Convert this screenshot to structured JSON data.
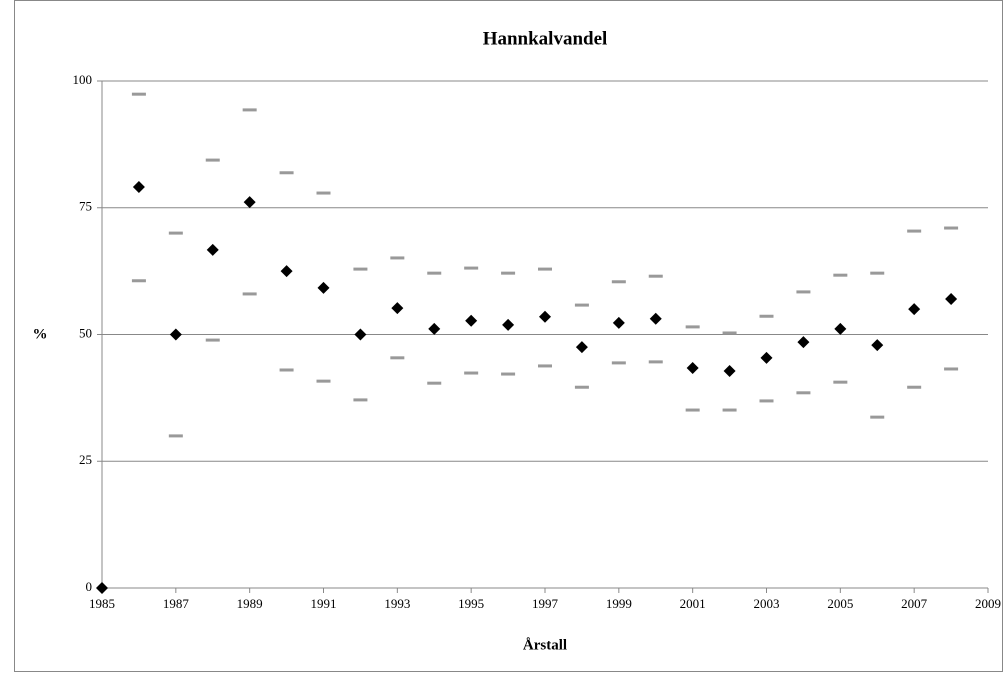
{
  "chart_data": {
    "type": "scatter",
    "title": "Hannkalvandel",
    "xlabel": "Årstall",
    "ylabel": "%",
    "x": [
      1985,
      1986,
      1987,
      1988,
      1989,
      1990,
      1991,
      1992,
      1993,
      1994,
      1995,
      1996,
      1997,
      1998,
      1999,
      2000,
      2001,
      2002,
      2003,
      2004,
      2005,
      2006,
      2007,
      2008
    ],
    "series": [
      {
        "color": "#000000",
        "marker": "diamond",
        "values": [
          0,
          79.1,
          50,
          66.7,
          76.1,
          62.5,
          59.2,
          50,
          55.2,
          51.1,
          52.7,
          51.9,
          53.5,
          47.5,
          52.3,
          53.1,
          43.4,
          42.8,
          45.4,
          48.5,
          51.1,
          47.9,
          55.0,
          57.0
        ]
      },
      {
        "color": "#999999",
        "marker": "dash",
        "values": [
          null,
          97.4,
          70.0,
          84.4,
          94.3,
          81.9,
          77.9,
          62.9,
          65.1,
          62.1,
          63.1,
          62.1,
          62.9,
          55.8,
          60.4,
          61.5,
          51.5,
          50.3,
          53.6,
          58.4,
          61.7,
          62.1,
          70.4,
          71.0
        ]
      },
      {
        "color": "#999999",
        "marker": "dash",
        "values": [
          null,
          60.6,
          30.0,
          48.9,
          58.0,
          43.0,
          40.8,
          37.1,
          45.4,
          40.4,
          42.4,
          42.2,
          43.8,
          39.6,
          44.4,
          44.6,
          35.1,
          35.1,
          36.9,
          38.5,
          40.6,
          33.7,
          39.6,
          43.2
        ]
      }
    ],
    "xlim": [
      1985,
      2009
    ],
    "xticks": [
      1985,
      1987,
      1989,
      1991,
      1993,
      1995,
      1997,
      1999,
      2001,
      2003,
      2005,
      2007,
      2009
    ],
    "ylim": [
      0,
      100
    ],
    "yticks": [
      0,
      25,
      50,
      75,
      100
    ],
    "grid": true
  }
}
